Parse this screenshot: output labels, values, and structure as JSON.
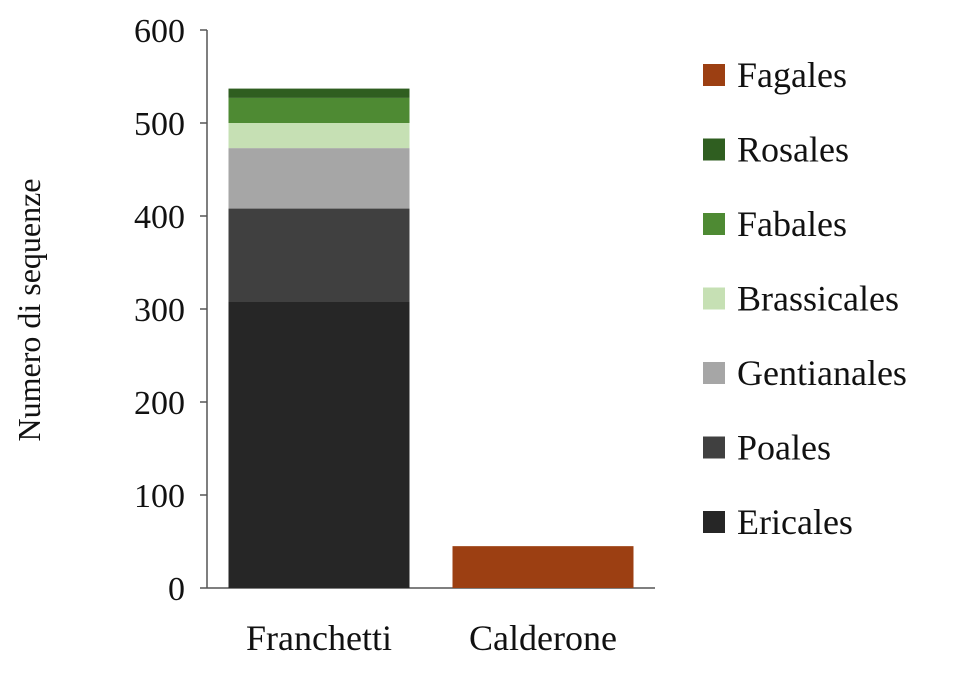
{
  "chart_data": {
    "type": "bar",
    "stacked": true,
    "title": "",
    "xlabel": "",
    "ylabel": "Numero di sequenze",
    "ylim": [
      0,
      600
    ],
    "yticks": [
      0,
      100,
      200,
      300,
      400,
      500,
      600
    ],
    "grid": false,
    "legend_position": "right",
    "categories": [
      "Franchetti",
      "Calderone"
    ],
    "series": [
      {
        "name": "Ericales",
        "color": "#262626",
        "values": [
          308,
          0
        ]
      },
      {
        "name": "Poales",
        "color": "#404040",
        "values": [
          100,
          0
        ]
      },
      {
        "name": "Gentianales",
        "color": "#a6a6a6",
        "values": [
          65,
          0
        ]
      },
      {
        "name": "Brassicales",
        "color": "#c6e0b4",
        "values": [
          27,
          0
        ]
      },
      {
        "name": "Fabales",
        "color": "#4e8a33",
        "values": [
          27,
          0
        ]
      },
      {
        "name": "Rosales",
        "color": "#2f5e20",
        "values": [
          10,
          0
        ]
      },
      {
        "name": "Fagales",
        "color": "#9c3f12",
        "values": [
          0,
          45
        ]
      }
    ],
    "legend_order": [
      "Fagales",
      "Rosales",
      "Fabales",
      "Brassicales",
      "Gentianales",
      "Poales",
      "Ericales"
    ]
  }
}
